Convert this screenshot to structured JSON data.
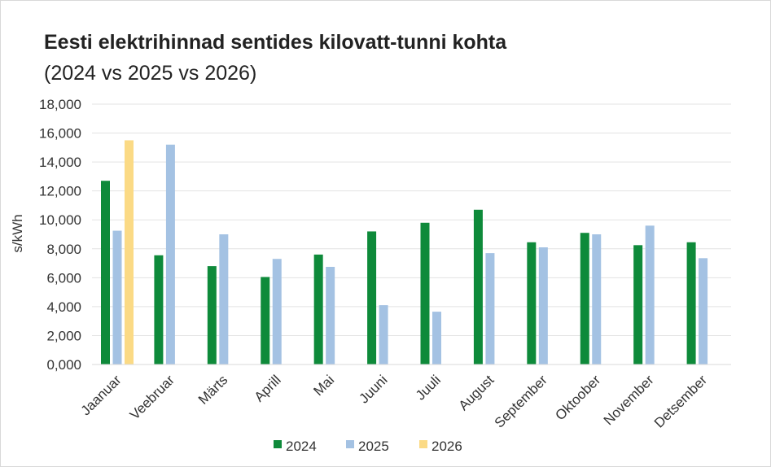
{
  "chart_data": {
    "type": "bar",
    "title": "Eesti elektrihinnad sentides kilovatt-tunni kohta",
    "subtitle": "(2024 vs 2025 vs 2026)",
    "xlabel": "",
    "ylabel": "s/kWh",
    "ylim": [
      0,
      18
    ],
    "yticks": [
      "0,000",
      "2,000",
      "4,000",
      "6,000",
      "8,000",
      "10,000",
      "12,000",
      "14,000",
      "16,000",
      "18,000"
    ],
    "grid": true,
    "legend_position": "bottom",
    "categories": [
      "Jaanuar",
      "Veebruar",
      "Märts",
      "Aprill",
      "Mai",
      "Juuni",
      "Juuli",
      "August",
      "September",
      "Oktoober",
      "November",
      "Detsember"
    ],
    "series": [
      {
        "name": "2024",
        "color": "#0e8a3a",
        "values": [
          12.7,
          7.55,
          6.8,
          6.05,
          7.6,
          9.2,
          9.8,
          10.7,
          8.45,
          9.1,
          8.25,
          8.45
        ]
      },
      {
        "name": "2025",
        "color": "#a4c2e3",
        "values": [
          9.25,
          15.2,
          9.0,
          7.3,
          6.75,
          4.1,
          3.65,
          7.7,
          8.1,
          9.0,
          9.6,
          7.35
        ]
      },
      {
        "name": "2026",
        "color": "#fbda85",
        "values": [
          15.5,
          null,
          null,
          null,
          null,
          null,
          null,
          null,
          null,
          null,
          null,
          null
        ]
      }
    ]
  }
}
